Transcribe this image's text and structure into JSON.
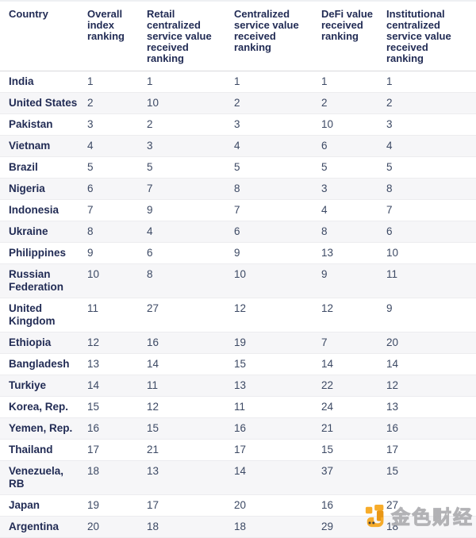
{
  "chart_data": {
    "type": "table",
    "title": "",
    "columns": [
      "Country",
      "Overall index ranking",
      "Retail centralized service value received ranking",
      "Centralized service value received ranking",
      "DeFi value received ranking",
      "Institutional centralized service value received ranking"
    ],
    "rows": [
      {
        "country": "India",
        "values": [
          1,
          1,
          1,
          1,
          1
        ]
      },
      {
        "country": "United States",
        "values": [
          2,
          10,
          2,
          2,
          2
        ]
      },
      {
        "country": "Pakistan",
        "values": [
          3,
          2,
          3,
          10,
          3
        ]
      },
      {
        "country": "Vietnam",
        "values": [
          4,
          3,
          4,
          6,
          4
        ]
      },
      {
        "country": "Brazil",
        "values": [
          5,
          5,
          5,
          5,
          5
        ]
      },
      {
        "country": "Nigeria",
        "values": [
          6,
          7,
          8,
          3,
          8
        ]
      },
      {
        "country": "Indonesia",
        "values": [
          7,
          9,
          7,
          4,
          7
        ]
      },
      {
        "country": "Ukraine",
        "values": [
          8,
          4,
          6,
          8,
          6
        ]
      },
      {
        "country": "Philippines",
        "values": [
          9,
          6,
          9,
          13,
          10
        ]
      },
      {
        "country": "Russian Federation",
        "values": [
          10,
          8,
          10,
          9,
          11
        ]
      },
      {
        "country": "United Kingdom",
        "values": [
          11,
          27,
          12,
          12,
          9
        ]
      },
      {
        "country": "Ethiopia",
        "values": [
          12,
          16,
          19,
          7,
          20
        ]
      },
      {
        "country": "Bangladesh",
        "values": [
          13,
          14,
          15,
          14,
          14
        ]
      },
      {
        "country": "Turkiye",
        "values": [
          14,
          11,
          13,
          22,
          12
        ]
      },
      {
        "country": "Korea, Rep.",
        "values": [
          15,
          12,
          11,
          24,
          13
        ]
      },
      {
        "country": "Yemen, Rep.",
        "values": [
          16,
          15,
          16,
          21,
          16
        ]
      },
      {
        "country": "Thailand",
        "values": [
          17,
          21,
          17,
          15,
          17
        ]
      },
      {
        "country": "Venezuela, RB",
        "values": [
          18,
          13,
          14,
          37,
          15
        ]
      },
      {
        "country": "Japan",
        "values": [
          19,
          17,
          20,
          16,
          27
        ]
      },
      {
        "country": "Argentina",
        "values": [
          20,
          18,
          18,
          29,
          18
        ]
      }
    ]
  },
  "watermark": {
    "text": "金色财经",
    "logo_icon": "jinse-finance-logo",
    "logo_color_primary": "#F7A81F",
    "logo_color_secondary": "#E8920A"
  },
  "colors": {
    "header_text": "#222c55",
    "country_text": "#222c55",
    "rank_text": "#3c4964",
    "stripe_background": "#f6f6f8",
    "row_divider": "#ececef",
    "header_divider": "#d8d8dc"
  }
}
